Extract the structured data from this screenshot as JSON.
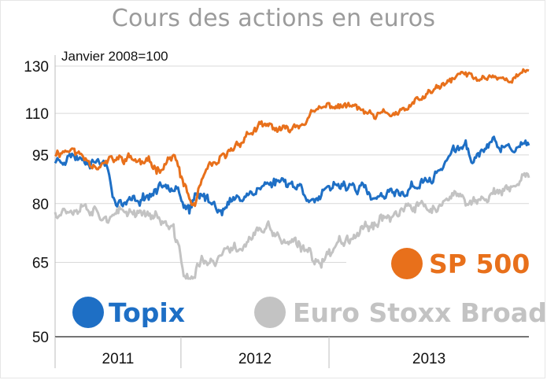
{
  "chart_data": {
    "type": "line",
    "title": "Cours des actions en euros",
    "annotation": "Janvier 2008=100",
    "yscale": "log",
    "ylim": [
      50,
      130
    ],
    "yticks": [
      130,
      110,
      95,
      80,
      65,
      50
    ],
    "xlim": [
      2010.65,
      2013.85
    ],
    "x_tick_labels": [
      "2011",
      "2012",
      "2013"
    ],
    "x_tick_positions": [
      2011.0,
      2012.0,
      2013.0
    ],
    "grid": true,
    "legend_placement": "bottom (inside plot)",
    "series": [
      {
        "name": "SP 500",
        "color": "#e8701b",
        "x": [
          2010.65,
          2010.75,
          2010.85,
          2010.95,
          2011.05,
          2011.15,
          2011.25,
          2011.35,
          2011.45,
          2011.52,
          2011.58,
          2011.62,
          2011.66,
          2011.72,
          2011.8,
          2011.9,
          2012.0,
          2012.1,
          2012.2,
          2012.3,
          2012.4,
          2012.5,
          2012.6,
          2012.7,
          2012.8,
          2012.9,
          2013.0,
          2013.1,
          2013.2,
          2013.3,
          2013.4,
          2013.5,
          2013.6,
          2013.7,
          2013.8,
          2013.85
        ],
        "y": [
          96,
          97,
          94,
          92,
          93,
          94,
          92,
          91,
          95,
          85,
          79,
          83,
          88,
          91,
          94,
          100,
          104,
          105,
          103,
          106,
          110,
          113,
          113,
          112,
          108,
          110,
          110,
          115,
          119,
          122,
          127,
          124,
          126,
          124,
          126,
          128
        ]
      },
      {
        "name": "Topix",
        "color": "#1e6fc5",
        "x": [
          2010.65,
          2010.75,
          2010.85,
          2010.95,
          2011.0,
          2011.05,
          2011.1,
          2011.2,
          2011.3,
          2011.4,
          2011.48,
          2011.52,
          2011.56,
          2011.6,
          2011.65,
          2011.72,
          2011.8,
          2011.9,
          2012.0,
          2012.1,
          2012.2,
          2012.3,
          2012.4,
          2012.5,
          2012.6,
          2012.7,
          2012.8,
          2012.9,
          2013.0,
          2013.1,
          2013.2,
          2013.3,
          2013.37,
          2013.42,
          2013.47,
          2013.55,
          2013.6,
          2013.7,
          2013.8,
          2013.85
        ],
        "y": [
          93,
          95,
          94,
          93,
          92,
          82,
          80,
          81,
          83,
          86,
          86,
          80,
          78,
          81,
          82,
          80,
          79,
          82,
          84,
          86,
          87,
          85,
          81,
          83,
          86,
          85,
          81,
          82,
          83,
          86,
          87,
          94,
          97,
          98,
          93,
          97,
          99,
          97,
          98,
          97
        ]
      },
      {
        "name": "Euro Stoxx Broad",
        "color": "#c3c3c3",
        "x": [
          2010.65,
          2010.75,
          2010.85,
          2010.95,
          2011.05,
          2011.15,
          2011.25,
          2011.35,
          2011.45,
          2011.52,
          2011.58,
          2011.65,
          2011.72,
          2011.8,
          2011.9,
          2012.0,
          2012.1,
          2012.2,
          2012.3,
          2012.4,
          2012.5,
          2012.6,
          2012.7,
          2012.8,
          2012.9,
          2013.0,
          2013.1,
          2013.2,
          2013.3,
          2013.4,
          2013.47,
          2013.55,
          2013.6,
          2013.7,
          2013.8,
          2013.85
        ],
        "y": [
          78,
          79,
          80,
          78,
          76,
          78,
          78,
          76,
          72,
          63,
          61,
          66,
          64,
          67,
          69,
          72,
          73,
          70,
          68,
          66,
          67,
          71,
          73,
          75,
          77,
          78,
          79,
          79,
          80,
          82,
          80,
          82,
          83,
          83,
          86,
          88
        ]
      }
    ],
    "legend": [
      "SP 500",
      "Topix",
      "Euro Stoxx Broad"
    ]
  }
}
